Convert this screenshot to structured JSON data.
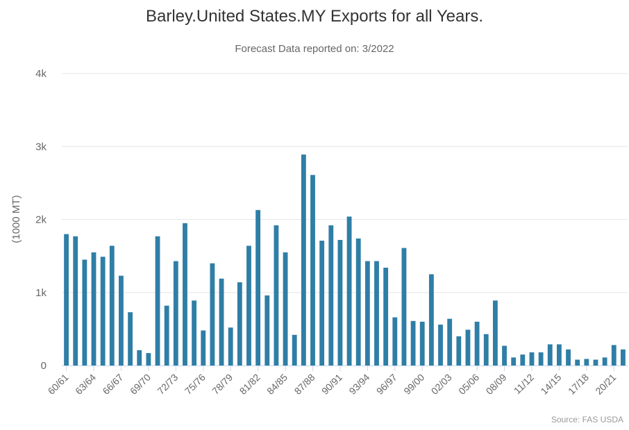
{
  "chart_data": {
    "type": "bar",
    "title": "Barley.United States.MY Exports for all Years.",
    "subtitle": "Forecast Data reported on: 3/2022",
    "ylabel": "(1000 MT)",
    "xlabel": "",
    "credit": "Source: FAS USDA",
    "ylim": [
      0,
      4000
    ],
    "yticks": [
      0,
      1000,
      2000,
      3000,
      4000
    ],
    "ytick_labels": [
      "0",
      "1k",
      "2k",
      "3k",
      "4k"
    ],
    "grid": true,
    "bar_color": "#2f7ea6",
    "categories": [
      "60/61",
      "61/62",
      "62/63",
      "63/64",
      "64/65",
      "65/66",
      "66/67",
      "67/68",
      "68/69",
      "69/70",
      "70/71",
      "71/72",
      "72/73",
      "73/74",
      "74/75",
      "75/76",
      "76/77",
      "77/78",
      "78/79",
      "79/80",
      "80/81",
      "81/82",
      "82/83",
      "83/84",
      "84/85",
      "85/86",
      "86/87",
      "87/88",
      "88/89",
      "89/90",
      "90/91",
      "91/92",
      "92/93",
      "93/94",
      "94/95",
      "95/96",
      "96/97",
      "97/98",
      "98/99",
      "99/00",
      "00/01",
      "01/02",
      "02/03",
      "03/04",
      "04/05",
      "05/06",
      "06/07",
      "07/08",
      "08/09",
      "09/10",
      "10/11",
      "11/12",
      "12/13",
      "13/14",
      "14/15",
      "15/16",
      "16/17",
      "17/18",
      "18/19",
      "19/20",
      "20/21",
      "21/22"
    ],
    "xtick_labels": [
      "60/61",
      "63/64",
      "66/67",
      "69/70",
      "72/73",
      "75/76",
      "78/79",
      "81/82",
      "84/85",
      "87/88",
      "90/91",
      "93/94",
      "96/97",
      "99/00",
      "02/03",
      "05/06",
      "08/09",
      "11/12",
      "14/15",
      "17/18",
      "20/21"
    ],
    "values": [
      1800,
      1770,
      1450,
      1550,
      1490,
      1640,
      1230,
      730,
      210,
      170,
      1770,
      820,
      1430,
      1950,
      890,
      480,
      1400,
      1190,
      520,
      1140,
      1640,
      2130,
      960,
      1920,
      1550,
      420,
      2890,
      2610,
      1710,
      1920,
      1720,
      2040,
      1740,
      1430,
      1430,
      1340,
      660,
      1610,
      610,
      600,
      1250,
      560,
      640,
      400,
      490,
      600,
      430,
      890,
      270,
      110,
      150,
      180,
      180,
      290,
      290,
      220,
      80,
      90,
      80,
      110,
      280,
      220
    ]
  }
}
